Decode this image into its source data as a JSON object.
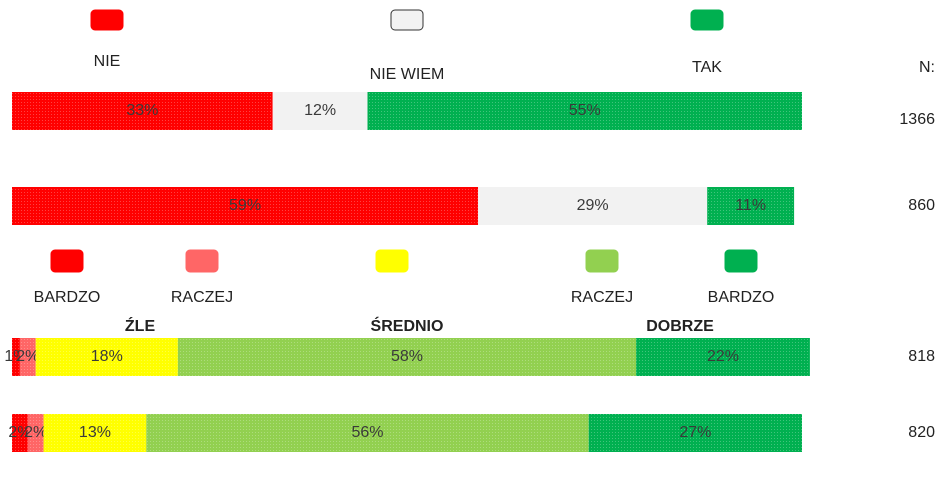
{
  "chart_data": [
    {
      "type": "bar",
      "stacked": true,
      "orientation": "horizontal",
      "xlim": [
        0,
        100
      ],
      "n_label": "N:",
      "n": [
        1366,
        860
      ],
      "series": [
        {
          "name": "NIE",
          "color": "#ff0000",
          "values": [
            33,
            59
          ],
          "value_labels": [
            "33%",
            "59%"
          ]
        },
        {
          "name": "NIE WIEM",
          "color": "#f2f2f2",
          "values": [
            12,
            29
          ],
          "value_labels": [
            "12%",
            "29%"
          ]
        },
        {
          "name": "TAK",
          "color": "#00b050",
          "values": [
            55,
            11
          ],
          "value_labels": [
            "55%",
            "11%"
          ]
        }
      ]
    },
    {
      "type": "bar",
      "stacked": true,
      "orientation": "horizontal",
      "xlim": [
        0,
        100
      ],
      "n": [
        818,
        820
      ],
      "group_labels": [
        "ŹLE",
        "ŚREDNIO",
        "DOBRZE"
      ],
      "series": [
        {
          "name": "BARDZO",
          "color": "#ff0000",
          "values": [
            1,
            2
          ],
          "value_labels": [
            "1%",
            "2%"
          ]
        },
        {
          "name": "RACZEJ",
          "color": "#ff6666",
          "values": [
            2,
            2
          ],
          "value_labels": [
            "2%",
            "2%"
          ]
        },
        {
          "name": null,
          "color": "#ffff00",
          "values": [
            18,
            13
          ],
          "value_labels": [
            "18%",
            "13%"
          ]
        },
        {
          "name": "RACZEJ",
          "color": "#92d050",
          "values": [
            58,
            56
          ],
          "value_labels": [
            "58%",
            "56%"
          ]
        },
        {
          "name": "BARDZO",
          "color": "#00b050",
          "values": [
            22,
            27
          ],
          "value_labels": [
            "22%",
            "27%"
          ]
        }
      ]
    }
  ]
}
